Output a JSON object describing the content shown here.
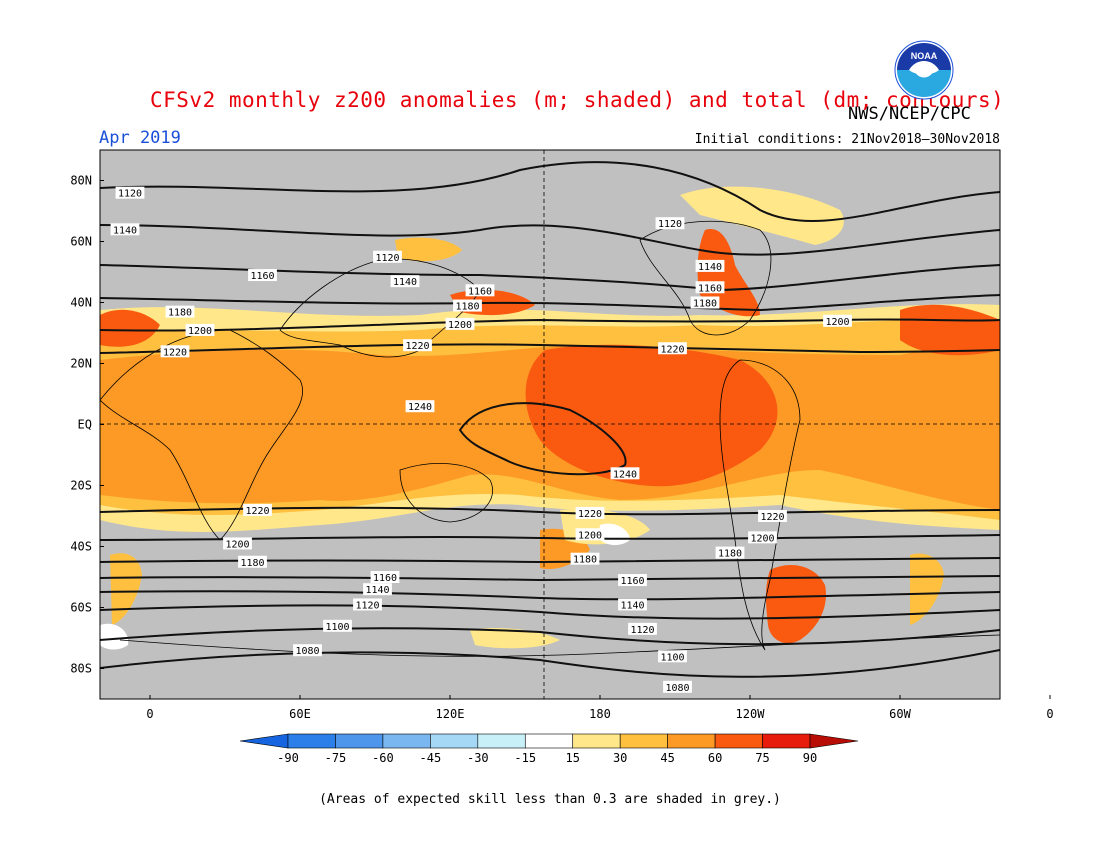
{
  "header": {
    "title": "CFSv2 monthly z200 anomalies (m; shaded) and total (dm; contours)",
    "agency": "NWS/NCEP/CPC",
    "period": "Apr 2019",
    "initial_conditions": "Initial conditions: 21Nov2018–30Nov2018"
  },
  "logo": {
    "icon": "noaa-logo-icon",
    "text": "NOAA"
  },
  "map": {
    "lat_labels": [
      "80N",
      "60N",
      "40N",
      "20N",
      "EQ",
      "20S",
      "40S",
      "60S",
      "80S"
    ],
    "lon_labels": [
      "0",
      "60E",
      "120E",
      "180",
      "120W",
      "60W",
      "0"
    ],
    "contour_labels": [
      {
        "text": "1120",
        "lon": -8,
        "lat": 76
      },
      {
        "text": "1140",
        "lon": -10,
        "lat": 64
      },
      {
        "text": "1120",
        "lon": 95,
        "lat": 55
      },
      {
        "text": "1160",
        "lon": 45,
        "lat": 49
      },
      {
        "text": "1140",
        "lon": 102,
        "lat": 47
      },
      {
        "text": "1180",
        "lon": 12,
        "lat": 37
      },
      {
        "text": "1200",
        "lon": 20,
        "lat": 31
      },
      {
        "text": "1220",
        "lon": 10,
        "lat": 24
      },
      {
        "text": "1160",
        "lon": 132,
        "lat": 44
      },
      {
        "text": "1180",
        "lon": 127,
        "lat": 39
      },
      {
        "text": "1200",
        "lon": 124,
        "lat": 33
      },
      {
        "text": "1220",
        "lon": 107,
        "lat": 26
      },
      {
        "text": "1120",
        "lon": 208,
        "lat": 66
      },
      {
        "text": "1140",
        "lon": 224,
        "lat": 52
      },
      {
        "text": "1160",
        "lon": 224,
        "lat": 45
      },
      {
        "text": "1180",
        "lon": 222,
        "lat": 40
      },
      {
        "text": "1200",
        "lon": 275,
        "lat": 34
      },
      {
        "text": "1220",
        "lon": 209,
        "lat": 25
      },
      {
        "text": "1240",
        "lon": 108,
        "lat": 6
      },
      {
        "text": "1240",
        "lon": 190,
        "lat": -16
      },
      {
        "text": "1220",
        "lon": 43,
        "lat": -28
      },
      {
        "text": "1200",
        "lon": 35,
        "lat": -39
      },
      {
        "text": "1180",
        "lon": 41,
        "lat": -45
      },
      {
        "text": "1160",
        "lon": 94,
        "lat": -50
      },
      {
        "text": "1140",
        "lon": 91,
        "lat": -54
      },
      {
        "text": "1120",
        "lon": 87,
        "lat": -59
      },
      {
        "text": "1100",
        "lon": 75,
        "lat": -66
      },
      {
        "text": "1080",
        "lon": 63,
        "lat": -74
      },
      {
        "text": "1220",
        "lon": 176,
        "lat": -29
      },
      {
        "text": "1200",
        "lon": 176,
        "lat": -36
      },
      {
        "text": "1180",
        "lon": 174,
        "lat": -44
      },
      {
        "text": "1220",
        "lon": 249,
        "lat": -30
      },
      {
        "text": "1200",
        "lon": 245,
        "lat": -37
      },
      {
        "text": "1180",
        "lon": 232,
        "lat": -42
      },
      {
        "text": "1160",
        "lon": 193,
        "lat": -51
      },
      {
        "text": "1140",
        "lon": 193,
        "lat": -59
      },
      {
        "text": "1120",
        "lon": 197,
        "lat": -67
      },
      {
        "text": "1100",
        "lon": 209,
        "lat": -76
      },
      {
        "text": "1080",
        "lon": 211,
        "lat": -86
      }
    ]
  },
  "colorbar": {
    "labels": [
      "-90",
      "-75",
      "-60",
      "-45",
      "-30",
      "-15",
      "15",
      "30",
      "45",
      "60",
      "75",
      "90"
    ],
    "colors": [
      "#1764e0",
      "#2c7ee8",
      "#4e96ec",
      "#7ab6f0",
      "#a4d8f5",
      "#c8f0f8",
      "#ffffff",
      "#ffe78a",
      "#ffc040",
      "#fd9a25",
      "#f95a10",
      "#e81c0c",
      "#b80d06"
    ],
    "low_arrow_color": "#1764e0",
    "high_arrow_color": "#b80d06"
  },
  "colors": {
    "land_skill_grey": "#c0c0c0",
    "title_red": "#e8000b",
    "period_blue": "#1a4fd8"
  },
  "footnote": "(Areas of expected skill less than 0.3 are shaded in grey.)"
}
